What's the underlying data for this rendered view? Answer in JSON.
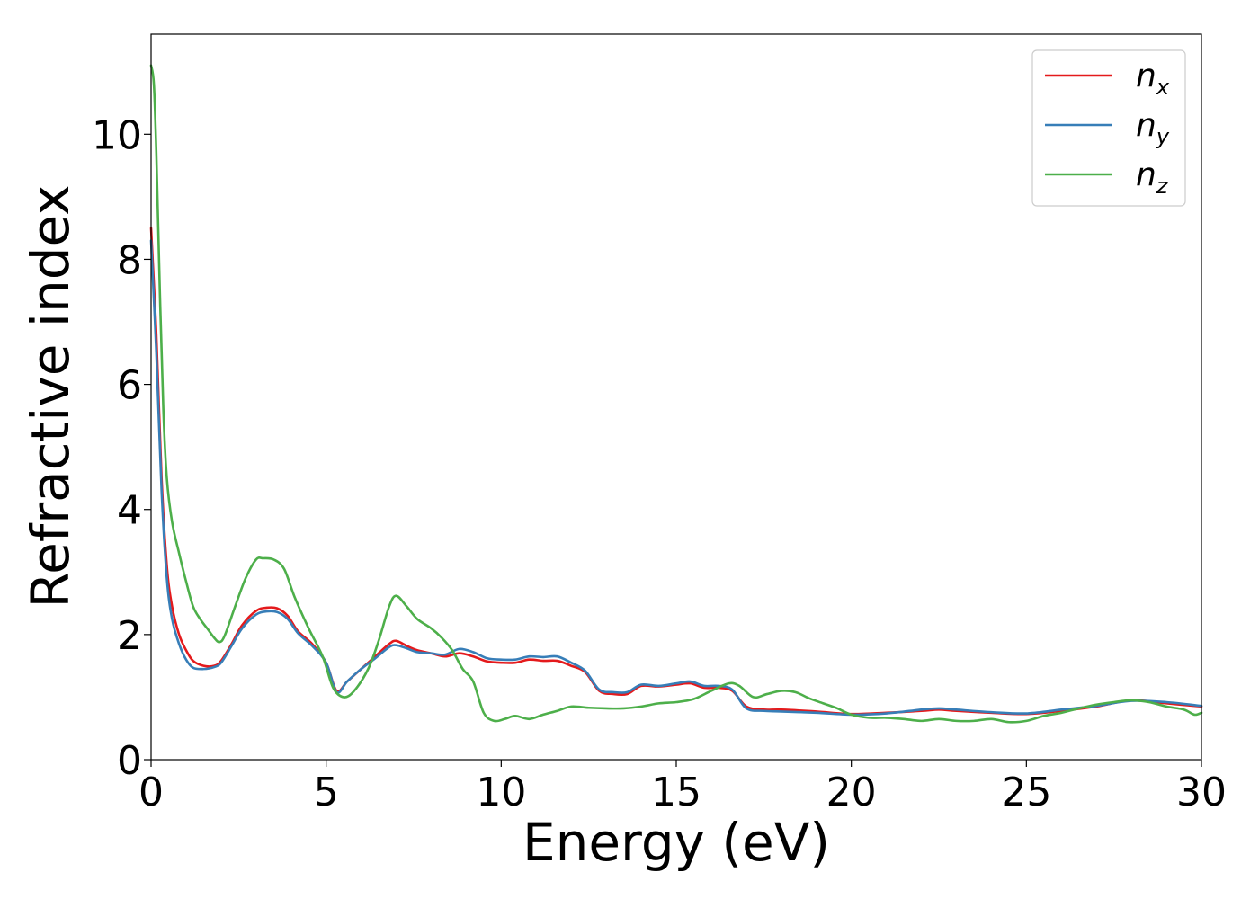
{
  "chart_data": {
    "type": "line",
    "title": "",
    "xlabel": "Energy (eV)",
    "ylabel": "Refractive index",
    "xlim": [
      0,
      30
    ],
    "ylim": [
      0,
      11.6
    ],
    "xticks": [
      0,
      5,
      10,
      15,
      20,
      25,
      30
    ],
    "yticks": [
      0,
      2,
      4,
      6,
      8,
      10
    ],
    "grid": false,
    "legend_position": "top-right",
    "series": [
      {
        "name": "n_x",
        "legend_base": "n",
        "legend_sub": "x",
        "color": "#e41a1c",
        "x": [
          0,
          0.15,
          0.3,
          0.45,
          0.6,
          0.8,
          1.0,
          1.2,
          1.5,
          1.8,
          2.0,
          2.3,
          2.6,
          3.0,
          3.3,
          3.6,
          3.9,
          4.2,
          4.6,
          5.0,
          5.3,
          5.6,
          6.0,
          6.4,
          6.8,
          7.0,
          7.3,
          7.6,
          8.0,
          8.4,
          8.8,
          9.2,
          9.6,
          10.0,
          10.4,
          10.8,
          11.2,
          11.6,
          12.0,
          12.4,
          12.8,
          13.2,
          13.6,
          14.0,
          14.5,
          15.0,
          15.4,
          15.8,
          16.2,
          16.6,
          17.0,
          17.5,
          18.0,
          19.0,
          20.0,
          21.0,
          22.0,
          22.5,
          23.0,
          24.0,
          25.0,
          26.0,
          27.0,
          28.0,
          29.0,
          30.0
        ],
        "y": [
          8.5,
          6.8,
          4.5,
          3.1,
          2.45,
          2.0,
          1.75,
          1.58,
          1.5,
          1.5,
          1.58,
          1.85,
          2.15,
          2.38,
          2.43,
          2.42,
          2.3,
          2.05,
          1.85,
          1.55,
          1.1,
          1.25,
          1.45,
          1.65,
          1.85,
          1.9,
          1.82,
          1.75,
          1.7,
          1.65,
          1.7,
          1.65,
          1.57,
          1.55,
          1.55,
          1.6,
          1.58,
          1.58,
          1.5,
          1.4,
          1.1,
          1.05,
          1.05,
          1.18,
          1.17,
          1.2,
          1.22,
          1.15,
          1.15,
          1.1,
          0.85,
          0.8,
          0.8,
          0.77,
          0.73,
          0.75,
          0.78,
          0.8,
          0.78,
          0.75,
          0.73,
          0.78,
          0.85,
          0.95,
          0.9,
          0.85
        ]
      },
      {
        "name": "n_y",
        "legend_base": "n",
        "legend_sub": "y",
        "color": "#377eb8",
        "x": [
          0,
          0.15,
          0.3,
          0.45,
          0.6,
          0.8,
          1.0,
          1.2,
          1.5,
          1.8,
          2.0,
          2.3,
          2.6,
          3.0,
          3.3,
          3.6,
          3.9,
          4.2,
          4.6,
          5.0,
          5.3,
          5.6,
          6.0,
          6.4,
          6.8,
          7.0,
          7.3,
          7.6,
          8.0,
          8.4,
          8.8,
          9.2,
          9.6,
          10.0,
          10.4,
          10.8,
          11.2,
          11.6,
          12.0,
          12.4,
          12.8,
          13.2,
          13.6,
          14.0,
          14.5,
          15.0,
          15.4,
          15.8,
          16.2,
          16.6,
          17.0,
          17.5,
          18.0,
          19.0,
          20.0,
          21.0,
          22.0,
          22.5,
          23.0,
          24.0,
          25.0,
          26.0,
          27.0,
          28.0,
          29.0,
          30.0
        ],
        "y": [
          8.3,
          6.5,
          4.3,
          2.9,
          2.25,
          1.85,
          1.6,
          1.47,
          1.45,
          1.48,
          1.55,
          1.82,
          2.1,
          2.32,
          2.37,
          2.36,
          2.25,
          2.02,
          1.82,
          1.55,
          1.08,
          1.25,
          1.45,
          1.62,
          1.8,
          1.83,
          1.78,
          1.72,
          1.7,
          1.68,
          1.77,
          1.72,
          1.62,
          1.6,
          1.6,
          1.65,
          1.64,
          1.65,
          1.55,
          1.42,
          1.12,
          1.08,
          1.08,
          1.2,
          1.18,
          1.22,
          1.25,
          1.18,
          1.18,
          1.12,
          0.82,
          0.78,
          0.77,
          0.75,
          0.72,
          0.74,
          0.8,
          0.82,
          0.8,
          0.76,
          0.74,
          0.8,
          0.86,
          0.94,
          0.92,
          0.86
        ]
      },
      {
        "name": "n_z",
        "legend_base": "n",
        "legend_sub": "z",
        "color": "#4daf4a",
        "x": [
          0,
          0.08,
          0.15,
          0.25,
          0.35,
          0.45,
          0.6,
          0.8,
          1.0,
          1.2,
          1.4,
          1.6,
          1.8,
          1.95,
          2.1,
          2.4,
          2.7,
          3.0,
          3.2,
          3.5,
          3.8,
          4.1,
          4.5,
          4.9,
          5.2,
          5.5,
          5.8,
          6.2,
          6.5,
          6.8,
          7.0,
          7.3,
          7.6,
          8.0,
          8.3,
          8.6,
          8.9,
          9.2,
          9.5,
          9.8,
          10.1,
          10.4,
          10.8,
          11.2,
          11.6,
          12.0,
          12.5,
          13.0,
          13.5,
          14.0,
          14.5,
          15.0,
          15.5,
          16.0,
          16.5,
          16.8,
          17.2,
          17.6,
          18.0,
          18.4,
          18.8,
          19.2,
          19.6,
          20.0,
          20.5,
          21.0,
          21.5,
          22.0,
          22.5,
          23.0,
          23.5,
          24.0,
          24.5,
          25.0,
          25.5,
          26.0,
          26.5,
          27.0,
          27.5,
          28.0,
          28.5,
          29.0,
          29.5,
          29.8,
          30.0
        ],
        "y": [
          11.1,
          10.8,
          9.7,
          7.5,
          5.6,
          4.5,
          3.8,
          3.3,
          2.85,
          2.45,
          2.25,
          2.1,
          1.95,
          1.88,
          1.98,
          2.45,
          2.9,
          3.2,
          3.22,
          3.2,
          3.05,
          2.6,
          2.1,
          1.65,
          1.15,
          1.0,
          1.1,
          1.45,
          1.9,
          2.45,
          2.62,
          2.45,
          2.25,
          2.1,
          1.95,
          1.75,
          1.45,
          1.25,
          0.75,
          0.62,
          0.65,
          0.7,
          0.65,
          0.72,
          0.78,
          0.85,
          0.83,
          0.82,
          0.82,
          0.85,
          0.9,
          0.92,
          0.97,
          1.1,
          1.22,
          1.18,
          1.0,
          1.05,
          1.1,
          1.08,
          0.98,
          0.9,
          0.82,
          0.72,
          0.67,
          0.67,
          0.65,
          0.62,
          0.65,
          0.62,
          0.62,
          0.65,
          0.6,
          0.62,
          0.7,
          0.75,
          0.82,
          0.88,
          0.92,
          0.95,
          0.92,
          0.85,
          0.8,
          0.72,
          0.75
        ]
      }
    ]
  }
}
